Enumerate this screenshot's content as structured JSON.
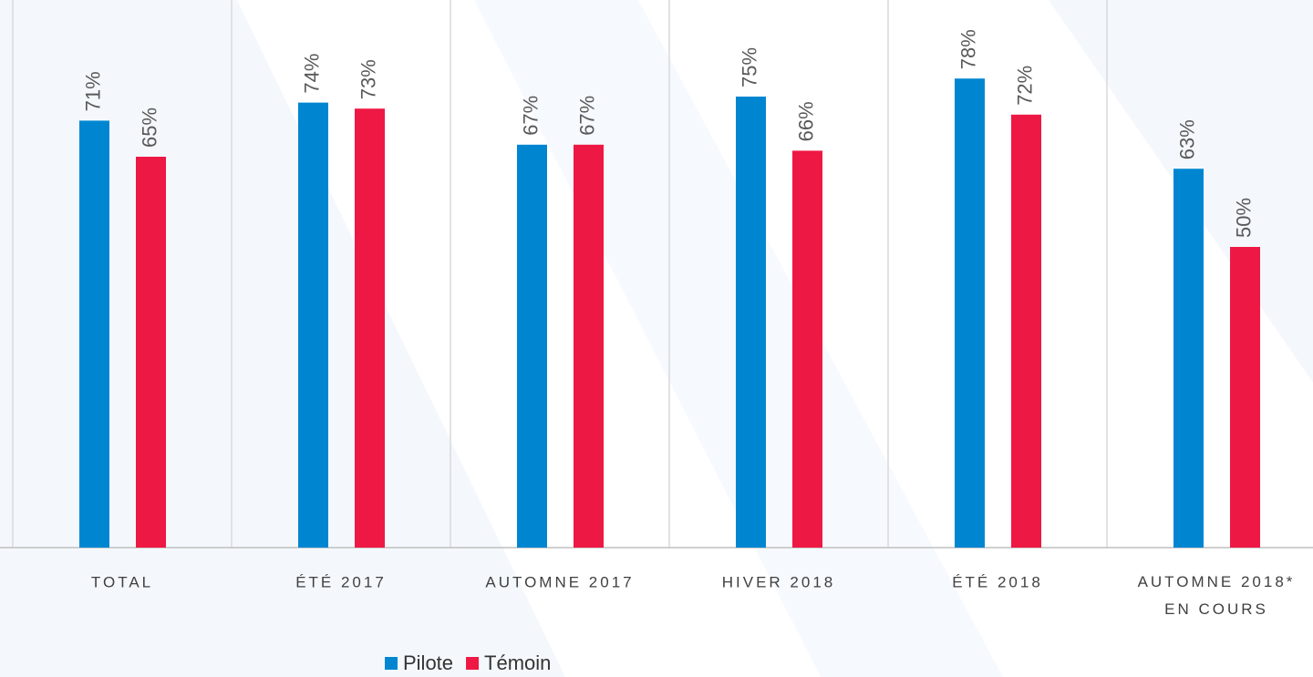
{
  "chart_data": {
    "type": "bar",
    "categories": [
      "TOTAL",
      "ÉTÉ 2017",
      "AUTOMNE 2017",
      "HIVER 2018",
      "ÉTÉ 2018",
      "AUTOMNE 2018*\nEN COURS"
    ],
    "series": [
      {
        "name": "Pilote",
        "color": "#0086d1",
        "values": [
          71,
          74,
          67,
          75,
          78,
          63
        ],
        "value_labels": [
          "71%",
          "74%",
          "67%",
          "75%",
          "78%",
          "63%"
        ]
      },
      {
        "name": "Témoin",
        "color": "#ee1844",
        "values": [
          65,
          73,
          67,
          66,
          72,
          50
        ],
        "value_labels": [
          "65%",
          "73%",
          "67%",
          "66%",
          "72%",
          "50%"
        ]
      }
    ],
    "ylim": [
      0,
      90
    ],
    "legend": "bottom"
  }
}
